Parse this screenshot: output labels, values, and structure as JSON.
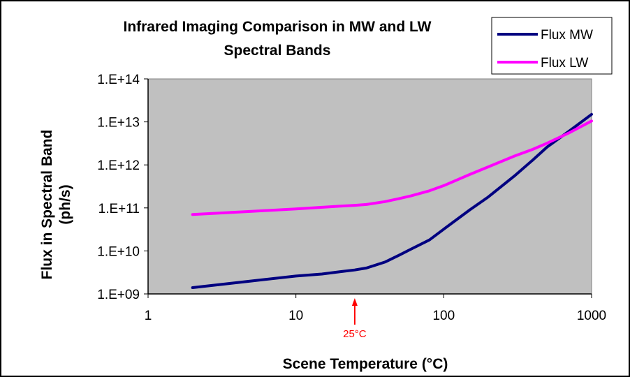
{
  "chart_data": {
    "type": "line",
    "title_lines": [
      "Infrared Imaging Comparison in MW and LW",
      "Spectral Bands"
    ],
    "xlabel": "Scene Temperature (°C)",
    "ylabel_lines": [
      "Flux in Spectral Band",
      "(ph/s)"
    ],
    "x_scale": "log",
    "y_scale": "log",
    "xlim": [
      1,
      1000
    ],
    "ylim": [
      1000000000.0,
      100000000000000.0
    ],
    "x_ticks": [
      1,
      10,
      100,
      1000
    ],
    "x_tick_labels": [
      "1",
      "10",
      "100",
      "1000"
    ],
    "y_ticks": [
      1000000000.0,
      10000000000.0,
      100000000000.0,
      1000000000000.0,
      10000000000000.0,
      100000000000000.0
    ],
    "y_tick_labels": [
      "1.E+09",
      "1.E+10",
      "1.E+11",
      "1.E+12",
      "1.E+13",
      "1.E+14"
    ],
    "grid": false,
    "plot_background": "#c0c0c0",
    "legend_position": "top-right",
    "series": [
      {
        "name": "Flux MW",
        "color": "#000080",
        "x": [
          2,
          5,
          10,
          15,
          20,
          25,
          30,
          40,
          50,
          60,
          80,
          100,
          150,
          200,
          300,
          400,
          500,
          700,
          1000
        ],
        "y": [
          1400000000.0,
          2000000000.0,
          2600000000.0,
          2900000000.0,
          3300000000.0,
          3600000000.0,
          4000000000.0,
          5500000000.0,
          8000000000.0,
          11000000000.0,
          18000000000.0,
          32000000000.0,
          90000000000.0,
          180000000000.0,
          550000000000.0,
          1300000000000.0,
          2600000000000.0,
          6000000000000.0,
          15000000000000.0
        ]
      },
      {
        "name": "Flux LW",
        "color": "#ff00ff",
        "x": [
          2,
          5,
          10,
          20,
          25,
          30,
          40,
          50,
          60,
          80,
          100,
          150,
          200,
          300,
          400,
          500,
          700,
          1000
        ],
        "y": [
          70000000000.0,
          83000000000.0,
          95000000000.0,
          110000000000.0,
          115000000000.0,
          120000000000.0,
          140000000000.0,
          165000000000.0,
          190000000000.0,
          250000000000.0,
          330000000000.0,
          600000000000.0,
          900000000000.0,
          1600000000000.0,
          2300000000000.0,
          3200000000000.0,
          5500000000000.0,
          10500000000000.0
        ]
      }
    ],
    "annotations": [
      {
        "text": "25°C",
        "x": 25,
        "color": "#ff0000",
        "style": "arrow pointing up to x axis"
      }
    ]
  }
}
